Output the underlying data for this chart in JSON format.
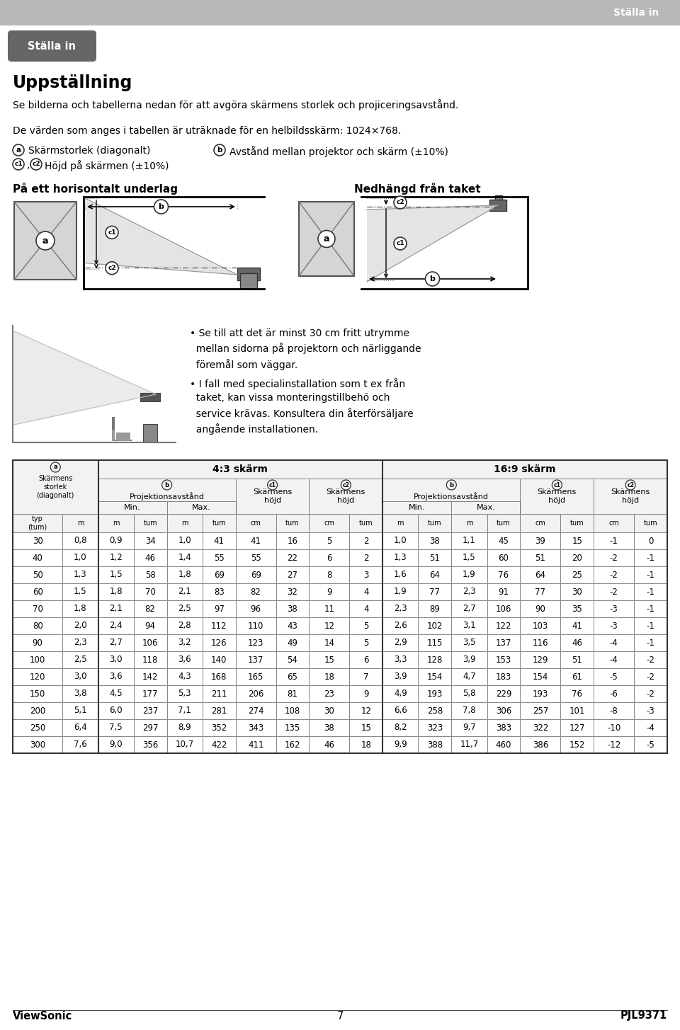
{
  "title_header": "Ställa in",
  "section_label": "Ställa in",
  "heading": "Uppställning",
  "para1": "Se bilderna och tabellerna nedan för att avgöra skärmens storlek och projiceringsavstånd.",
  "para2": "De värden som anges i tabellen är uträknade för en helbildsskärm: 1024×768.",
  "legend_a_text": "Skärmstorlek (diagonalt)",
  "legend_b_text": "Avstånd mellan projektor och skärm (±10%)",
  "legend_c_text": "Höjd på skärmen (±10%)",
  "diagram_left_title": "På ett horisontalt underlag",
  "diagram_right_title": "Nedhängd från taket",
  "bullet1": "Se till att det är minst 30 cm fritt utrymme\nmella sidorna på projektorn och närliggande\nföremål som väggar.",
  "bullet2": "I fall med specialinstallation som t ex från\ntaket, kan vissa monteringstillbehö och\nservice krävas. Konsultera din återförsäljare\nangående installationen.",
  "unit_row": [
    "typ\n(tum)",
    "m",
    "m",
    "tum",
    "m",
    "tum",
    "cm",
    "tum",
    "cm",
    "tum",
    "m",
    "tum",
    "m",
    "tum",
    "cm",
    "tum",
    "cm",
    "tum"
  ],
  "data_rows": [
    [
      30,
      "0,8",
      "0,9",
      34,
      "1,0",
      41,
      41,
      16,
      5,
      2,
      "1,0",
      38,
      "1,1",
      45,
      39,
      15,
      -1,
      0
    ],
    [
      40,
      "1,0",
      "1,2",
      46,
      "1,4",
      55,
      55,
      22,
      6,
      2,
      "1,3",
      51,
      "1,5",
      60,
      51,
      20,
      -2,
      -1
    ],
    [
      50,
      "1,3",
      "1,5",
      58,
      "1,8",
      69,
      69,
      27,
      8,
      3,
      "1,6",
      64,
      "1,9",
      76,
      64,
      25,
      -2,
      -1
    ],
    [
      60,
      "1,5",
      "1,8",
      70,
      "2,1",
      83,
      82,
      32,
      9,
      4,
      "1,9",
      77,
      "2,3",
      91,
      77,
      30,
      -2,
      -1
    ],
    [
      70,
      "1,8",
      "2,1",
      82,
      "2,5",
      97,
      96,
      38,
      11,
      4,
      "2,3",
      89,
      "2,7",
      106,
      90,
      35,
      -3,
      -1
    ],
    [
      80,
      "2,0",
      "2,4",
      94,
      "2,8",
      112,
      110,
      43,
      12,
      5,
      "2,6",
      102,
      "3,1",
      122,
      103,
      41,
      -3,
      -1
    ],
    [
      90,
      "2,3",
      "2,7",
      106,
      "3,2",
      126,
      123,
      49,
      14,
      5,
      "2,9",
      115,
      "3,5",
      137,
      116,
      46,
      -4,
      -1
    ],
    [
      100,
      "2,5",
      "3,0",
      118,
      "3,6",
      140,
      137,
      54,
      15,
      6,
      "3,3",
      128,
      "3,9",
      153,
      129,
      51,
      -4,
      -2
    ],
    [
      120,
      "3,0",
      "3,6",
      142,
      "4,3",
      168,
      165,
      65,
      18,
      7,
      "3,9",
      154,
      "4,7",
      183,
      154,
      61,
      -5,
      -2
    ],
    [
      150,
      "3,8",
      "4,5",
      177,
      "5,3",
      211,
      206,
      81,
      23,
      9,
      "4,9",
      193,
      "5,8",
      229,
      193,
      76,
      -6,
      -2
    ],
    [
      200,
      "5,1",
      "6,0",
      237,
      "7,1",
      281,
      274,
      108,
      30,
      12,
      "6,6",
      258,
      "7,8",
      306,
      257,
      101,
      -8,
      -3
    ],
    [
      250,
      "6,4",
      "7,5",
      297,
      "8,9",
      352,
      343,
      135,
      38,
      15,
      "8,2",
      323,
      "9,7",
      383,
      322,
      127,
      -10,
      -4
    ],
    [
      300,
      "7,6",
      "9,0",
      356,
      "10,7",
      422,
      411,
      162,
      46,
      18,
      "9,9",
      388,
      "11,7",
      460,
      386,
      152,
      -12,
      -5
    ]
  ],
  "footer_left": "ViewSonic",
  "footer_center": "7",
  "footer_right": "PJL9371",
  "bg_color": "#ffffff"
}
